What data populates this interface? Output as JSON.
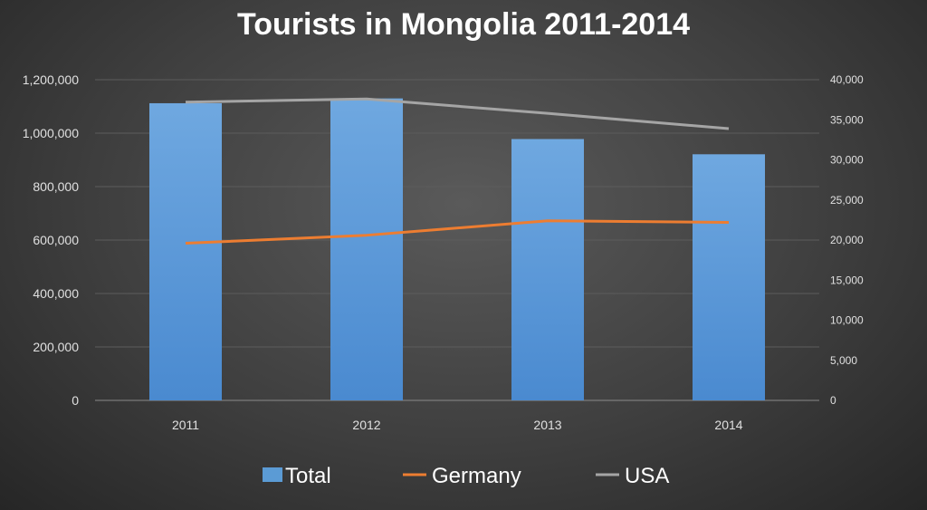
{
  "chart_data": {
    "type": "bar",
    "title": "Tourists in Mongolia 2011-2014",
    "categories": [
      "2011",
      "2012",
      "2013",
      "2014"
    ],
    "series": [
      {
        "name": "Total",
        "kind": "bar",
        "axis": "left",
        "color": "#5b9bd5",
        "values": [
          1112000,
          1130000,
          978000,
          921000
        ]
      },
      {
        "name": "Germany",
        "kind": "line",
        "axis": "right",
        "color": "#ed7d31",
        "values": [
          19600,
          20600,
          22400,
          22200
        ]
      },
      {
        "name": "USA",
        "kind": "line",
        "axis": "right",
        "color": "#a5a5a5",
        "values": [
          37200,
          37600,
          35800,
          33900
        ]
      }
    ],
    "ylim_left": [
      0,
      1200000
    ],
    "yticks_left": [
      "0",
      "200,000",
      "400,000",
      "600,000",
      "800,000",
      "1,000,000",
      "1,200,000"
    ],
    "ylim_right": [
      0,
      40000
    ],
    "yticks_right": [
      "0",
      "5,000",
      "10,000",
      "15,000",
      "20,000",
      "25,000",
      "30,000",
      "35,000",
      "40,000"
    ],
    "grid": true,
    "legend_position": "bottom"
  }
}
